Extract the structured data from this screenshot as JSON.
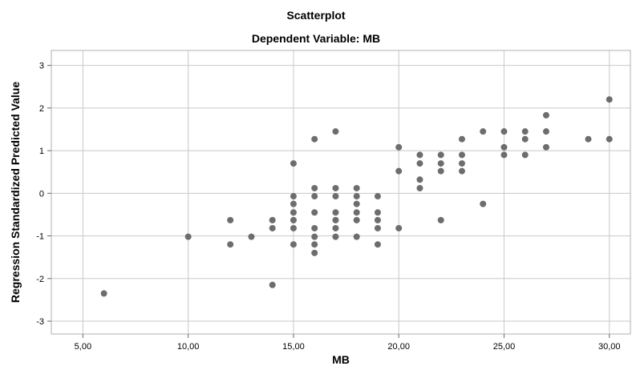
{
  "chart_data": {
    "type": "scatter",
    "title": "Scatterplot",
    "subtitle": "Dependent Variable: MB",
    "xlabel": "MB",
    "ylabel": "Regression Standardized Predicted Value",
    "xlim": [
      3.5,
      31.0
    ],
    "ylim": [
      -3.3,
      3.35
    ],
    "xticks": [
      5,
      10,
      15,
      20,
      25,
      30
    ],
    "xtick_labels": [
      "5,00",
      "10,00",
      "15,00",
      "20,00",
      "25,00",
      "30,00"
    ],
    "yticks": [
      -3,
      -2,
      -1,
      0,
      1,
      2,
      3
    ],
    "ytick_labels": [
      "-3",
      "-2",
      "-1",
      "0",
      "1",
      "2",
      "3"
    ],
    "grid": true,
    "marker_color": "#6d6d6d",
    "grid_color": "#c8c8c8",
    "points": [
      [
        6,
        -2.35
      ],
      [
        10,
        -1.02
      ],
      [
        12,
        -0.63
      ],
      [
        12,
        -1.2
      ],
      [
        13,
        -1.02
      ],
      [
        14,
        -0.63
      ],
      [
        14,
        -0.82
      ],
      [
        14,
        -2.15
      ],
      [
        15,
        0.7
      ],
      [
        15,
        -0.07
      ],
      [
        15,
        -0.25
      ],
      [
        15,
        -0.45
      ],
      [
        15,
        -0.63
      ],
      [
        15,
        -0.82
      ],
      [
        15,
        -1.2
      ],
      [
        16,
        1.27
      ],
      [
        16,
        0.12
      ],
      [
        16,
        -0.07
      ],
      [
        16,
        -0.45
      ],
      [
        16,
        -0.82
      ],
      [
        16,
        -1.02
      ],
      [
        16,
        -1.2
      ],
      [
        16,
        -1.4
      ],
      [
        17,
        1.45
      ],
      [
        17,
        0.12
      ],
      [
        17,
        -0.07
      ],
      [
        17,
        -0.45
      ],
      [
        17,
        -0.63
      ],
      [
        17,
        -0.82
      ],
      [
        17,
        -1.02
      ],
      [
        18,
        0.12
      ],
      [
        18,
        -0.07
      ],
      [
        18,
        -0.25
      ],
      [
        18,
        -0.45
      ],
      [
        18,
        -0.63
      ],
      [
        18,
        -1.02
      ],
      [
        19,
        -0.07
      ],
      [
        19,
        -0.45
      ],
      [
        19,
        -0.63
      ],
      [
        19,
        -0.82
      ],
      [
        19,
        -1.2
      ],
      [
        20,
        1.08
      ],
      [
        20,
        0.52
      ],
      [
        20,
        -0.82
      ],
      [
        21,
        0.9
      ],
      [
        21,
        0.7
      ],
      [
        21,
        0.32
      ],
      [
        21,
        0.12
      ],
      [
        22,
        0.9
      ],
      [
        22,
        0.7
      ],
      [
        22,
        0.52
      ],
      [
        22,
        -0.63
      ],
      [
        23,
        1.27
      ],
      [
        23,
        0.9
      ],
      [
        23,
        0.7
      ],
      [
        23,
        0.52
      ],
      [
        24,
        1.45
      ],
      [
        24,
        -0.25
      ],
      [
        25,
        1.45
      ],
      [
        25,
        1.08
      ],
      [
        25,
        0.9
      ],
      [
        26,
        1.45
      ],
      [
        26,
        1.27
      ],
      [
        26,
        0.9
      ],
      [
        27,
        1.83
      ],
      [
        27,
        1.45
      ],
      [
        27,
        1.08
      ],
      [
        29,
        1.27
      ],
      [
        30,
        2.2
      ],
      [
        30,
        1.27
      ]
    ]
  }
}
